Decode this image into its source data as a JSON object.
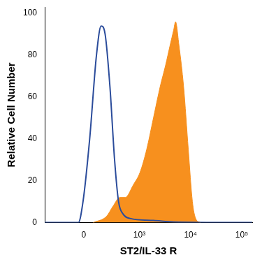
{
  "chart_data": {
    "type": "line",
    "x_label": "ST2/IL-33 R",
    "y_label": "Relative Cell Number",
    "xlim": [
      -460,
      160000
    ],
    "xticks": [
      0,
      {
        "value": 1000,
        "label": "10³"
      },
      {
        "value": 10000,
        "label": "10⁴"
      },
      {
        "value": 100000,
        "label": "10⁵"
      }
    ],
    "ylim": [
      0,
      103
    ],
    "yticks": [
      0,
      20,
      40,
      60,
      80,
      100
    ],
    "grid": false,
    "series": [
      {
        "type": "line",
        "color": "#2b4c9b",
        "x": [
          -460,
          -143,
          -40,
          -5,
          45,
          100,
          143,
          185,
          243,
          310,
          378,
          474,
          648,
          1890,
          4690,
          160000
        ],
        "values": [
          0,
          0,
          0,
          10,
          40,
          80,
          94,
          90,
          65,
          30,
          10,
          4,
          2,
          1,
          0.3,
          0
        ]
      },
      {
        "type": "area",
        "color": "#f7901e",
        "x": [
          72,
          201,
          289,
          403,
          521,
          757,
          1030,
          1394,
          1890,
          2560,
          3250,
          4020,
          4690,
          5110,
          5940,
          7340,
          9060,
          10900,
          12600,
          15600
        ],
        "values": [
          0,
          3,
          8,
          12,
          12,
          18,
          24,
          35,
          50,
          65,
          75,
          85,
          92,
          96,
          85,
          65,
          35,
          10,
          2,
          0
        ]
      }
    ]
  }
}
